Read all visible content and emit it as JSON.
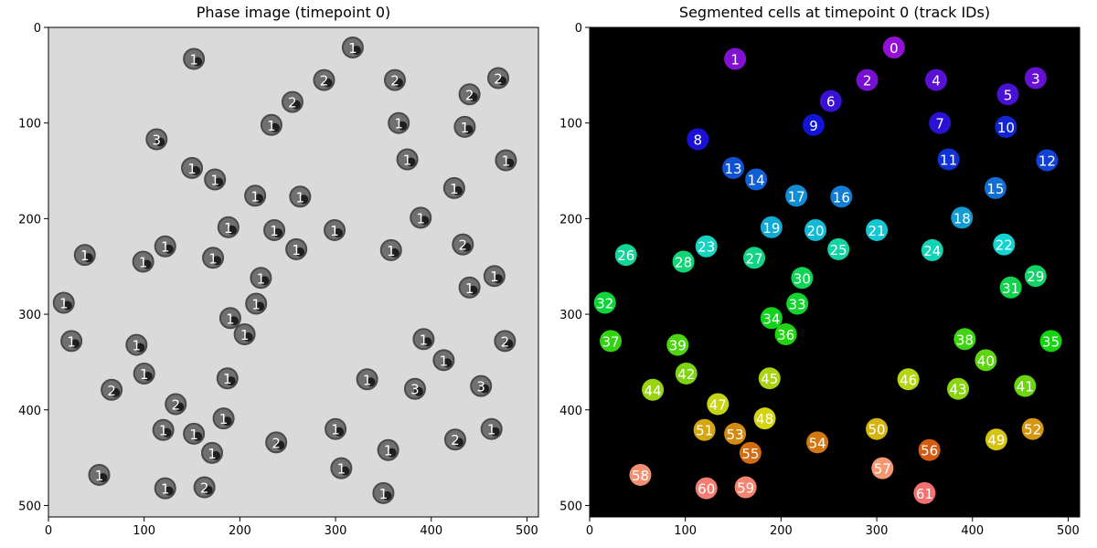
{
  "panels": {
    "left": {
      "title": "Phase image (timepoint 0)",
      "background": "#dcdcdc",
      "cell_color": "#707070",
      "cell_rim": "#4a4a4a",
      "x_ticks": [
        "0",
        "100",
        "200",
        "300",
        "400",
        "500"
      ],
      "y_ticks": [
        "0",
        "100",
        "200",
        "300",
        "400",
        "500"
      ]
    },
    "right": {
      "title": "Segmented cells at timepoint 0 (track IDs)",
      "background": "#000000",
      "x_ticks": [
        "0",
        "100",
        "200",
        "300",
        "400",
        "500"
      ],
      "y_ticks": [
        "0",
        "100",
        "200",
        "300",
        "400",
        "500"
      ]
    }
  },
  "chart_data": [
    {
      "type": "other",
      "title": "Phase image (timepoint 0)",
      "xlim": [
        0,
        512
      ],
      "ylim": [
        512,
        0
      ],
      "image_type": "grayscale phase-contrast microscopy",
      "annotations": [
        {
          "x": 152,
          "y": 33,
          "text": "1"
        },
        {
          "x": 318,
          "y": 21,
          "text": "1"
        },
        {
          "x": 288,
          "y": 55,
          "text": "2"
        },
        {
          "x": 362,
          "y": 55,
          "text": "2"
        },
        {
          "x": 470,
          "y": 53,
          "text": "2"
        },
        {
          "x": 255,
          "y": 78,
          "text": "2"
        },
        {
          "x": 440,
          "y": 70,
          "text": "2"
        },
        {
          "x": 233,
          "y": 102,
          "text": "1"
        },
        {
          "x": 366,
          "y": 100,
          "text": "1"
        },
        {
          "x": 435,
          "y": 104,
          "text": "1"
        },
        {
          "x": 113,
          "y": 117,
          "text": "3"
        },
        {
          "x": 375,
          "y": 138,
          "text": "1"
        },
        {
          "x": 478,
          "y": 139,
          "text": "1"
        },
        {
          "x": 150,
          "y": 147,
          "text": "1"
        },
        {
          "x": 174,
          "y": 159,
          "text": "1"
        },
        {
          "x": 424,
          "y": 168,
          "text": "1"
        },
        {
          "x": 216,
          "y": 176,
          "text": "1"
        },
        {
          "x": 263,
          "y": 177,
          "text": "1"
        },
        {
          "x": 389,
          "y": 199,
          "text": "1"
        },
        {
          "x": 188,
          "y": 209,
          "text": "1"
        },
        {
          "x": 236,
          "y": 212,
          "text": "1"
        },
        {
          "x": 299,
          "y": 212,
          "text": "1"
        },
        {
          "x": 433,
          "y": 227,
          "text": "2"
        },
        {
          "x": 122,
          "y": 229,
          "text": "1"
        },
        {
          "x": 259,
          "y": 232,
          "text": "1"
        },
        {
          "x": 358,
          "y": 233,
          "text": "1"
        },
        {
          "x": 38,
          "y": 238,
          "text": "1"
        },
        {
          "x": 172,
          "y": 241,
          "text": "1"
        },
        {
          "x": 99,
          "y": 245,
          "text": "1"
        },
        {
          "x": 222,
          "y": 262,
          "text": "1"
        },
        {
          "x": 466,
          "y": 260,
          "text": "1"
        },
        {
          "x": 440,
          "y": 272,
          "text": "1"
        },
        {
          "x": 16,
          "y": 288,
          "text": "1"
        },
        {
          "x": 217,
          "y": 289,
          "text": "1"
        },
        {
          "x": 190,
          "y": 304,
          "text": "1"
        },
        {
          "x": 205,
          "y": 321,
          "text": "1"
        },
        {
          "x": 392,
          "y": 326,
          "text": "1"
        },
        {
          "x": 24,
          "y": 328,
          "text": "1"
        },
        {
          "x": 92,
          "y": 332,
          "text": "1"
        },
        {
          "x": 477,
          "y": 328,
          "text": "2"
        },
        {
          "x": 413,
          "y": 348,
          "text": "1"
        },
        {
          "x": 100,
          "y": 362,
          "text": "1"
        },
        {
          "x": 187,
          "y": 367,
          "text": "1"
        },
        {
          "x": 333,
          "y": 368,
          "text": "1"
        },
        {
          "x": 452,
          "y": 375,
          "text": "3"
        },
        {
          "x": 383,
          "y": 378,
          "text": "3"
        },
        {
          "x": 66,
          "y": 379,
          "text": "2"
        },
        {
          "x": 133,
          "y": 394,
          "text": "2"
        },
        {
          "x": 183,
          "y": 409,
          "text": "1"
        },
        {
          "x": 120,
          "y": 421,
          "text": "1"
        },
        {
          "x": 300,
          "y": 420,
          "text": "1"
        },
        {
          "x": 152,
          "y": 425,
          "text": "1"
        },
        {
          "x": 463,
          "y": 420,
          "text": "1"
        },
        {
          "x": 425,
          "y": 431,
          "text": "2"
        },
        {
          "x": 238,
          "y": 434,
          "text": "2"
        },
        {
          "x": 171,
          "y": 445,
          "text": "1"
        },
        {
          "x": 355,
          "y": 442,
          "text": "1"
        },
        {
          "x": 306,
          "y": 461,
          "text": "1"
        },
        {
          "x": 53,
          "y": 468,
          "text": "1"
        },
        {
          "x": 122,
          "y": 482,
          "text": "1"
        },
        {
          "x": 163,
          "y": 481,
          "text": "2"
        },
        {
          "x": 350,
          "y": 487,
          "text": "1"
        }
      ]
    },
    {
      "type": "other",
      "title": "Segmented cells at timepoint 0 (track IDs)",
      "xlim": [
        0,
        512
      ],
      "ylim": [
        512,
        0
      ],
      "image_type": "segmentation label map",
      "annotations": [
        {
          "x": 318,
          "y": 21,
          "text": "0"
        },
        {
          "x": 152,
          "y": 33,
          "text": "1"
        },
        {
          "x": 290,
          "y": 55,
          "text": "2"
        },
        {
          "x": 466,
          "y": 53,
          "text": "3"
        },
        {
          "x": 362,
          "y": 55,
          "text": "4"
        },
        {
          "x": 437,
          "y": 70,
          "text": "5"
        },
        {
          "x": 252,
          "y": 77,
          "text": "6"
        },
        {
          "x": 366,
          "y": 100,
          "text": "7"
        },
        {
          "x": 234,
          "y": 102,
          "text": "9"
        },
        {
          "x": 435,
          "y": 104,
          "text": "10"
        },
        {
          "x": 113,
          "y": 117,
          "text": "8"
        },
        {
          "x": 375,
          "y": 138,
          "text": "11"
        },
        {
          "x": 478,
          "y": 139,
          "text": "12"
        },
        {
          "x": 150,
          "y": 147,
          "text": "13"
        },
        {
          "x": 174,
          "y": 159,
          "text": "14"
        },
        {
          "x": 424,
          "y": 168,
          "text": "15"
        },
        {
          "x": 216,
          "y": 176,
          "text": "17"
        },
        {
          "x": 263,
          "y": 177,
          "text": "16"
        },
        {
          "x": 389,
          "y": 199,
          "text": "18"
        },
        {
          "x": 190,
          "y": 209,
          "text": "19"
        },
        {
          "x": 236,
          "y": 212,
          "text": "20"
        },
        {
          "x": 300,
          "y": 212,
          "text": "21"
        },
        {
          "x": 433,
          "y": 227,
          "text": "22"
        },
        {
          "x": 122,
          "y": 229,
          "text": "23"
        },
        {
          "x": 260,
          "y": 232,
          "text": "25"
        },
        {
          "x": 358,
          "y": 233,
          "text": "24"
        },
        {
          "x": 38,
          "y": 238,
          "text": "26"
        },
        {
          "x": 172,
          "y": 241,
          "text": "27"
        },
        {
          "x": 98,
          "y": 245,
          "text": "28"
        },
        {
          "x": 222,
          "y": 262,
          "text": "30"
        },
        {
          "x": 466,
          "y": 260,
          "text": "29"
        },
        {
          "x": 440,
          "y": 272,
          "text": "31"
        },
        {
          "x": 16,
          "y": 288,
          "text": "32"
        },
        {
          "x": 217,
          "y": 289,
          "text": "33"
        },
        {
          "x": 190,
          "y": 304,
          "text": "34"
        },
        {
          "x": 205,
          "y": 321,
          "text": "36"
        },
        {
          "x": 392,
          "y": 326,
          "text": "38"
        },
        {
          "x": 22,
          "y": 328,
          "text": "37"
        },
        {
          "x": 92,
          "y": 332,
          "text": "39"
        },
        {
          "x": 482,
          "y": 328,
          "text": "35"
        },
        {
          "x": 414,
          "y": 348,
          "text": "40"
        },
        {
          "x": 101,
          "y": 362,
          "text": "42"
        },
        {
          "x": 188,
          "y": 367,
          "text": "45"
        },
        {
          "x": 333,
          "y": 368,
          "text": "46"
        },
        {
          "x": 455,
          "y": 375,
          "text": "41"
        },
        {
          "x": 385,
          "y": 378,
          "text": "43"
        },
        {
          "x": 66,
          "y": 379,
          "text": "44"
        },
        {
          "x": 134,
          "y": 394,
          "text": "47"
        },
        {
          "x": 183,
          "y": 409,
          "text": "48"
        },
        {
          "x": 120,
          "y": 421,
          "text": "51"
        },
        {
          "x": 300,
          "y": 420,
          "text": "50"
        },
        {
          "x": 152,
          "y": 425,
          "text": "53"
        },
        {
          "x": 463,
          "y": 420,
          "text": "52"
        },
        {
          "x": 425,
          "y": 431,
          "text": "49"
        },
        {
          "x": 238,
          "y": 434,
          "text": "54"
        },
        {
          "x": 168,
          "y": 445,
          "text": "55"
        },
        {
          "x": 355,
          "y": 442,
          "text": "56"
        },
        {
          "x": 306,
          "y": 461,
          "text": "57"
        },
        {
          "x": 53,
          "y": 468,
          "text": "58"
        },
        {
          "x": 122,
          "y": 482,
          "text": "60"
        },
        {
          "x": 163,
          "y": 481,
          "text": "59"
        },
        {
          "x": 350,
          "y": 487,
          "text": "61"
        }
      ]
    }
  ]
}
